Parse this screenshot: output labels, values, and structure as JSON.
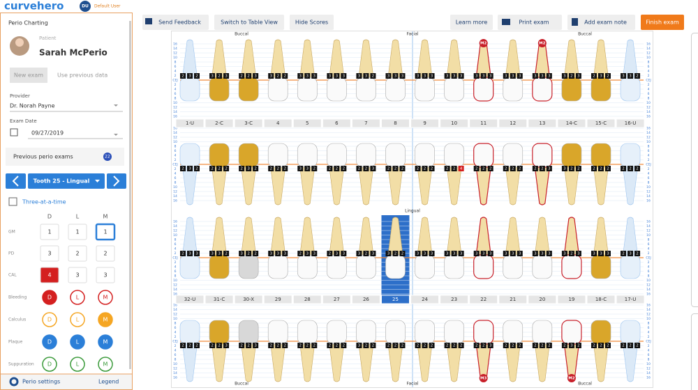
{
  "header": {
    "logo": "curvehero",
    "avatar": "DU",
    "user": "Default User"
  },
  "toolbar": {
    "left": [
      "Send Feedback",
      "Switch to Table View",
      "Hide Scores"
    ],
    "right": [
      "Learn more",
      "Print exam",
      "Add exam note",
      "Finish exam"
    ]
  },
  "panel": {
    "title": "Perio Charting",
    "patient_label": "Patient",
    "patient": "Sarah McPerio",
    "new_exam": "New exam",
    "use_previous": "Use previous data",
    "provider_label": "Provider",
    "provider": "Dr. Norah Payne",
    "date_label": "Exam Date",
    "date": "09/27/2019",
    "previous": "Previous perio exams",
    "previous_count": 22,
    "tooth": "Tooth 25 - Lingual",
    "three": "Three-at-a-time",
    "columns": [
      "D",
      "L",
      "M"
    ],
    "measures": [
      {
        "label": "GM",
        "values": [
          1,
          1,
          1
        ]
      },
      {
        "label": "PD",
        "values": [
          3,
          2,
          2
        ]
      },
      {
        "label": "CAL",
        "values": [
          4,
          3,
          3
        ]
      }
    ],
    "indicators": [
      {
        "label": "Bleeding",
        "color": "#d42020",
        "filled": [
          true,
          false,
          false
        ]
      },
      {
        "label": "Calculus",
        "color": "#f5a623",
        "filled": [
          false,
          false,
          true
        ]
      },
      {
        "label": "Plaque",
        "color": "#2b7fd8",
        "filled": [
          true,
          true,
          true
        ]
      },
      {
        "label": "Suppuration",
        "color": "#3a9a3a",
        "filled": [
          false,
          false,
          false
        ]
      }
    ],
    "settings": "Perio settings",
    "legend": "Legend"
  },
  "chart": {
    "top_labels": [
      "Buccal",
      "Facial",
      "Buccal"
    ],
    "middle_label": "Lingual",
    "bottom_labels": [
      "Buccal",
      "Facial",
      "Buccal"
    ],
    "scale": [
      "16",
      "14",
      "12",
      "10",
      "8",
      "6",
      "4",
      "2",
      "CEJ",
      "2",
      "4",
      "6",
      "8",
      "10",
      "12",
      "14",
      "16"
    ],
    "upper_teeth": [
      "1-U",
      "2-C",
      "3-C",
      "4",
      "5",
      "6",
      "7",
      "8",
      "9",
      "10",
      "11",
      "12",
      "13",
      "14-C",
      "15-C",
      "16-U"
    ],
    "lower_teeth": [
      "32-U",
      "31-C",
      "30-X",
      "29",
      "28",
      "27",
      "26",
      "25",
      "24",
      "23",
      "22",
      "21",
      "20",
      "19",
      "18-C",
      "17-U"
    ],
    "upper_buccal": {
      "values": [
        [
          2,
          3,
          2
        ],
        [
          3,
          2,
          3
        ],
        [
          2,
          2,
          3
        ],
        [
          3,
          2,
          2
        ],
        [
          3,
          3,
          3
        ],
        [
          3,
          3,
          3
        ],
        [
          3,
          3,
          2
        ],
        [
          3,
          3,
          3
        ],
        [
          3,
          3,
          3
        ],
        [
          3,
          3,
          3
        ],
        [
          3,
          3,
          3
        ],
        [
          3,
          3,
          3
        ],
        [
          3,
          3,
          3
        ],
        [
          3,
          2,
          3
        ],
        [
          2,
          3,
          2
        ],
        [
          3,
          3,
          2
        ]
      ],
      "marks": [
        null,
        null,
        null,
        null,
        null,
        null,
        null,
        null,
        null,
        null,
        "M2",
        null,
        "M2",
        null,
        null,
        null
      ]
    },
    "upper_lingual": {
      "values": [
        [
          2,
          3,
          2
        ],
        [
          2,
          2,
          2
        ],
        [
          2,
          3,
          2
        ],
        [
          2,
          2,
          2
        ],
        [
          3,
          3,
          2
        ],
        [
          2,
          2,
          2
        ],
        [
          2,
          2,
          3
        ],
        [
          2,
          2,
          2
        ],
        [
          2,
          2,
          2
        ],
        [
          2,
          2,
          4
        ],
        [
          2,
          2,
          2
        ],
        [
          2,
          2,
          2
        ],
        [
          2,
          2,
          3
        ],
        [
          3,
          2,
          2
        ],
        [
          2,
          2,
          2
        ],
        [
          2,
          2,
          2
        ]
      ]
    },
    "lower_lingual": {
      "values": [
        [
          2,
          3,
          3
        ],
        [
          3,
          3,
          2
        ],
        [
          3,
          2,
          2
        ],
        [
          3,
          3,
          3
        ],
        [
          2,
          3,
          3
        ],
        [
          2,
          3,
          3
        ],
        [
          3,
          2,
          3
        ],
        [
          3,
          2,
          2
        ],
        [
          3,
          3,
          3
        ],
        [
          3,
          3,
          3
        ],
        [
          3,
          3,
          3
        ],
        [
          3,
          3,
          3
        ],
        [
          3,
          3,
          3
        ],
        [
          3,
          2,
          3
        ],
        [
          3,
          3,
          3
        ],
        [
          2,
          3,
          2
        ]
      ]
    },
    "lower_buccal": {
      "values": [
        [
          2,
          2,
          2
        ],
        [
          2,
          2,
          3
        ],
        [
          2,
          2,
          3
        ],
        [
          2,
          2,
          2
        ],
        [
          2,
          2,
          2
        ],
        [
          2,
          2,
          2
        ],
        [
          3,
          2,
          2
        ],
        [
          2,
          2,
          2
        ],
        [
          2,
          2,
          2
        ],
        [
          2,
          2,
          2
        ],
        [
          2,
          2,
          3
        ],
        [
          2,
          2,
          2
        ],
        [
          2,
          2,
          2
        ],
        [
          2,
          3,
          2
        ],
        [
          2,
          2,
          2
        ],
        [
          2,
          2,
          2
        ]
      ],
      "marks": [
        null,
        null,
        null,
        null,
        null,
        null,
        null,
        null,
        null,
        null,
        "M3",
        null,
        null,
        "M2",
        null,
        null
      ]
    }
  }
}
